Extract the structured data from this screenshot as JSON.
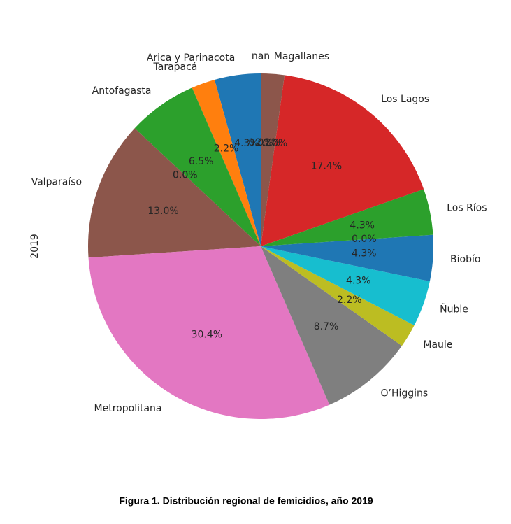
{
  "chart_data": {
    "type": "pie",
    "ylabel": "2019",
    "caption": "Figura 1. Distribución regional de femicidios, año 2019",
    "categories": [
      "Arica y Parinacota",
      "Tarapacá",
      "Antofagasta",
      null,
      null,
      "Valparaíso",
      "Metropolitana",
      "O’Higgins",
      "Maule",
      "Ñuble",
      "Biobío",
      null,
      "Los Ríos",
      "Los Lagos",
      null,
      "Magallanes",
      "nan"
    ],
    "values": [
      4.3,
      2.2,
      6.5,
      0.0,
      0.0,
      13.0,
      30.4,
      8.7,
      2.2,
      4.3,
      4.3,
      0.0,
      4.3,
      17.4,
      0.0,
      2.2,
      0.0
    ],
    "value_labels": [
      "4.3%",
      "2.2%",
      "6.5%",
      "0.0%",
      "0.0%",
      "13.0%",
      "30.4%",
      "8.7%",
      "2.2%",
      "4.3%",
      "4.3%",
      "0.0%",
      "4.3%",
      "17.4%",
      "0.0%",
      "2.2%",
      "0.0%"
    ],
    "colors": [
      "#1f77b4",
      "#ff7f0e",
      "#2ca02c",
      "#d62728",
      "#9467bd",
      "#8c564b",
      "#e377c2",
      "#7f7f7f",
      "#bcbd22",
      "#17becf",
      "#1f77b4",
      "#ff7f0e",
      "#2ca02c",
      "#d62728",
      "#9467bd",
      "#8c564b",
      "#e377c2"
    ]
  }
}
